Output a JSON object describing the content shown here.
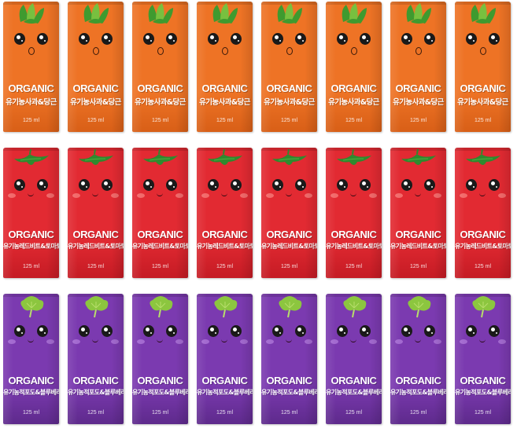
{
  "products": [
    {
      "id": "carrot",
      "brand": "ORGANIC",
      "name_ko": "유기농사과&당근",
      "volume": "125 ml",
      "colors": {
        "body": "#ee7325",
        "bodyDark": "#d85f17",
        "leaf": "#3f9a2f",
        "leafLight": "#78c03f",
        "cheek": "#f5a05a"
      },
      "mouth": "o",
      "count": 8
    },
    {
      "id": "tomato",
      "brand": "ORGANIC",
      "name_ko": "유기농레드비트&토마토",
      "volume": "125 ml",
      "colors": {
        "body": "#e22a32",
        "bodyDark": "#c51b24",
        "leaf": "#2f8a2e",
        "leafLight": "#4fb040",
        "cheek": "#f26a6a"
      },
      "mouth": "smile",
      "count": 8
    },
    {
      "id": "grape",
      "brand": "ORGANIC",
      "name_ko": "유기농적포도&블루베리",
      "volume": "125 ml",
      "colors": {
        "body": "#7b3ab0",
        "bodyDark": "#5e2a8c",
        "leaf": "#8cc63f",
        "leafLight": "#b7dd6b",
        "cheek": "#a36ad0"
      },
      "mouth": "smile",
      "count": 8
    }
  ]
}
